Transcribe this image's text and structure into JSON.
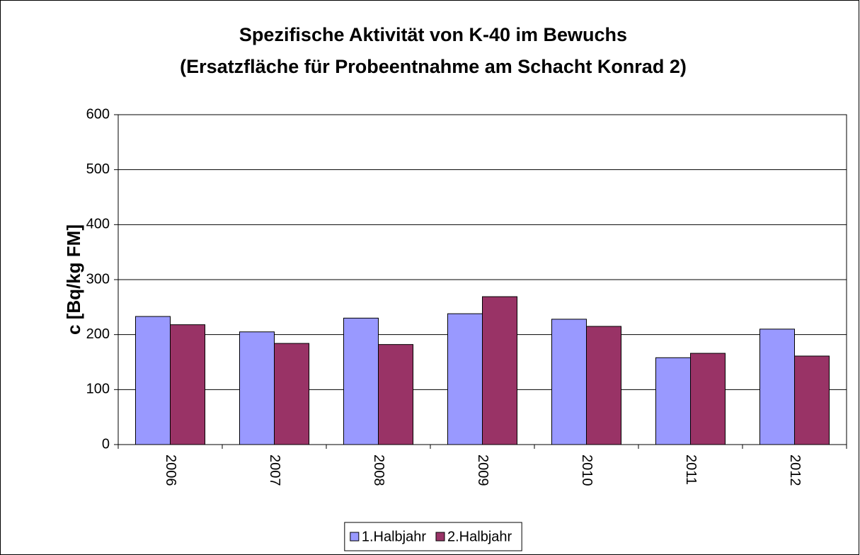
{
  "chart_data": {
    "type": "bar",
    "title": "Spezifische Aktivität von K-40 im Bewuchs",
    "subtitle": "(Ersatzfläche für Probeentnahme am Schacht Konrad 2)",
    "y_label": "c [Bq/kg FM]",
    "categories": [
      "2006",
      "2007",
      "2008",
      "2009",
      "2010",
      "2011",
      "2012"
    ],
    "series": [
      {
        "name": "1.Halbjahr",
        "color": "#9999ff",
        "values": [
          233,
          205,
          230,
          238,
          228,
          158,
          210
        ]
      },
      {
        "name": "2.Halbjahr",
        "color": "#993366",
        "values": [
          218,
          184,
          182,
          269,
          215,
          166,
          161
        ]
      }
    ],
    "ylim": [
      0,
      600
    ],
    "yticks": [
      0,
      100,
      200,
      300,
      400,
      500,
      600
    ],
    "grid": true,
    "legend": "bottom"
  }
}
